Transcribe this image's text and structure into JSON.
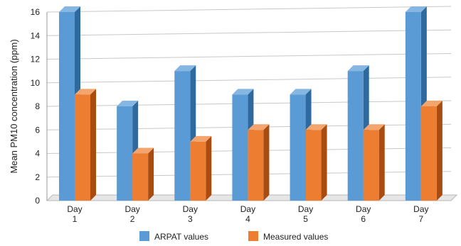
{
  "chart_data": {
    "type": "bar",
    "style": "3d-clustered-column",
    "ylabel": "Mean PM10 concentration (ppm)",
    "xlabel": "",
    "ylim": [
      0,
      16
    ],
    "yticks": [
      0,
      2,
      4,
      6,
      8,
      10,
      12,
      14,
      16
    ],
    "grid": true,
    "legend_position": "bottom",
    "categories": [
      [
        "Day",
        "1"
      ],
      [
        "Day",
        "2"
      ],
      [
        "Day",
        "3"
      ],
      [
        "Day",
        "4"
      ],
      [
        "Day",
        "5"
      ],
      [
        "Day",
        "6"
      ],
      [
        "Day",
        "7"
      ]
    ],
    "series": [
      {
        "name": "ARPAT values",
        "values": [
          16,
          8,
          11,
          9,
          9,
          11,
          16
        ],
        "colors": {
          "front": "#5b9bd5",
          "side": "#2e6a9e",
          "top": "#86b6e2"
        }
      },
      {
        "name": "Measured values",
        "values": [
          9,
          4,
          5,
          6,
          6,
          6,
          8
        ],
        "colors": {
          "front": "#ed7d31",
          "side": "#a84c12",
          "top": "#f4a46d"
        }
      }
    ]
  }
}
